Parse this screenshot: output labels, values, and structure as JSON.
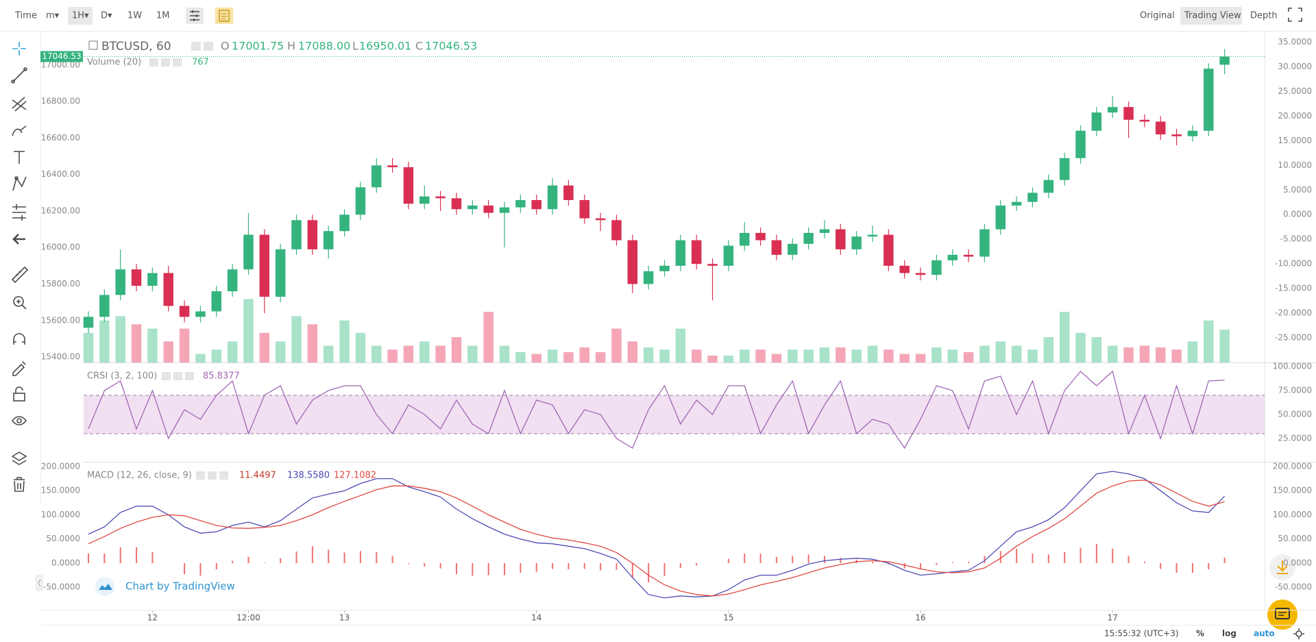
{
  "toolbar": {
    "intervals": [
      "Time",
      "m▾",
      "1H▾",
      "D▾",
      "1W",
      "1M"
    ],
    "views": [
      "Original",
      "Trading View",
      "Depth"
    ]
  },
  "status": {
    "clock": "15:55:32 (UTC+3)",
    "options": [
      "%",
      "log",
      "auto"
    ]
  },
  "watermark": "Chart by TradingView",
  "chart_data": [
    {
      "type": "candlestick",
      "title": "BTCUSD, 60",
      "legend": {
        "labels": [
          "O",
          "H",
          "L",
          "C"
        ],
        "values": [
          "17001.75",
          "17088.00",
          "16950.01",
          "17046.53"
        ]
      },
      "x": [
        0,
        2,
        4,
        6,
        8,
        10,
        12,
        14,
        16,
        18,
        20,
        22,
        24,
        26,
        28,
        30,
        32,
        34,
        36,
        38,
        40,
        42,
        44,
        46,
        48,
        50,
        52,
        54,
        56,
        58,
        60,
        62,
        64,
        66,
        68,
        70,
        72,
        74,
        76,
        78,
        80,
        82,
        84,
        86,
        88,
        90,
        92,
        94,
        96,
        98,
        100,
        102,
        104,
        106,
        108,
        110,
        112,
        114,
        116,
        118,
        120,
        122,
        124,
        126,
        128,
        130,
        132,
        134,
        136,
        138,
        140,
        142
      ],
      "xlim": [
        -0.6,
        147
      ],
      "xticks": [
        {
          "value": 8,
          "label": "12"
        },
        {
          "value": 20,
          "label": "12:00"
        },
        {
          "value": 32,
          "label": "13"
        },
        {
          "value": 56,
          "label": "14"
        },
        {
          "value": 80,
          "label": "15"
        },
        {
          "value": 104,
          "label": "16"
        },
        {
          "value": 128,
          "label": "17"
        }
      ],
      "ylim": [
        15370,
        17150
      ],
      "yticks": [
        {
          "value": 15400,
          "label": "15400.00"
        },
        {
          "value": 15600,
          "label": "15600.00"
        },
        {
          "value": 15800,
          "label": "15800.00"
        },
        {
          "value": 16000,
          "label": "16000.00"
        },
        {
          "value": 16200,
          "label": "16200.00"
        },
        {
          "value": 16400,
          "label": "16400.00"
        },
        {
          "value": 16600,
          "label": "16600.00"
        },
        {
          "value": 16800,
          "label": "16800.00"
        },
        {
          "value": 17000,
          "label": "17000.00"
        }
      ],
      "y2lim": [
        -30,
        35.9
      ],
      "y2ticks": [
        {
          "value": -25,
          "label": "-25.0000"
        },
        {
          "value": -20,
          "label": "-20.0000"
        },
        {
          "value": -15,
          "label": "-15.0000"
        },
        {
          "value": -10,
          "label": "-10.0000"
        },
        {
          "value": -5,
          "label": "-5.0000"
        },
        {
          "value": 0,
          "label": "0.0000"
        },
        {
          "value": 5,
          "label": "5.0000"
        },
        {
          "value": 10,
          "label": "10.0000"
        },
        {
          "value": 15,
          "label": "15.0000"
        },
        {
          "value": 20,
          "label": "20.0000"
        },
        {
          "value": 25,
          "label": "25.0000"
        },
        {
          "value": 30,
          "label": "30.0000"
        },
        {
          "value": 35,
          "label": "35.0000"
        }
      ],
      "open": [
        15560,
        15620,
        15740,
        15880,
        15790,
        15860,
        15680,
        15620,
        15650,
        15760,
        15880,
        16070,
        15730,
        15990,
        16150,
        15990,
        16090,
        16180,
        16330,
        16450,
        16440,
        16240,
        16280,
        16270,
        16210,
        16230,
        16190,
        16220,
        16260,
        16210,
        16340,
        16260,
        16160,
        16150,
        16040,
        15800,
        15870,
        15900,
        16040,
        15910,
        15900,
        16010,
        16080,
        16040,
        15960,
        16020,
        16080,
        16100,
        15990,
        16060,
        16070,
        15900,
        15860,
        15850,
        15930,
        15960,
        15950,
        16100,
        16230,
        16250,
        16300,
        16370,
        16490,
        16640,
        16740,
        16770,
        16700,
        16690,
        16620,
        16610,
        16640,
        17001.75
      ],
      "high": [
        15650,
        15770,
        15990,
        15910,
        15890,
        15900,
        15710,
        15680,
        15790,
        15910,
        16190,
        16100,
        16020,
        16180,
        16180,
        16120,
        16210,
        16360,
        16490,
        16490,
        16470,
        16340,
        16310,
        16300,
        16260,
        16260,
        16250,
        16290,
        16290,
        16380,
        16370,
        16290,
        16190,
        16180,
        16070,
        15900,
        15930,
        16070,
        16070,
        15940,
        16040,
        16140,
        16110,
        16070,
        16050,
        16110,
        16150,
        16130,
        16090,
        16120,
        16100,
        15930,
        15890,
        15960,
        15990,
        15990,
        16130,
        16260,
        16280,
        16330,
        16400,
        16520,
        16670,
        16770,
        16830,
        16800,
        16730,
        16720,
        16650,
        16670,
        17010,
        17088
      ],
      "low": [
        15530,
        15590,
        15710,
        15760,
        15760,
        15650,
        15590,
        15590,
        15620,
        15730,
        15850,
        15640,
        15700,
        15960,
        15960,
        15940,
        16060,
        16150,
        16300,
        16410,
        16210,
        16210,
        16200,
        16180,
        16180,
        16160,
        16000,
        16190,
        16180,
        16180,
        16230,
        16130,
        16090,
        16010,
        15750,
        15770,
        15840,
        15870,
        15880,
        15710,
        15870,
        15980,
        16010,
        15930,
        15930,
        15990,
        16050,
        15960,
        15960,
        16030,
        15870,
        15830,
        15820,
        15820,
        15900,
        15920,
        15920,
        16070,
        16200,
        16220,
        16270,
        16340,
        16460,
        16610,
        16710,
        16600,
        16660,
        16590,
        16560,
        16580,
        16610,
        16950.01
      ],
      "close": [
        15620,
        15740,
        15880,
        15790,
        15860,
        15680,
        15620,
        15650,
        15760,
        15880,
        16070,
        15730,
        15990,
        16150,
        15990,
        16090,
        16180,
        16330,
        16450,
        16440,
        16240,
        16280,
        16270,
        16210,
        16230,
        16190,
        16220,
        16260,
        16210,
        16340,
        16260,
        16160,
        16150,
        16040,
        15800,
        15870,
        15900,
        16040,
        15910,
        15900,
        16010,
        16080,
        16040,
        15960,
        16020,
        16080,
        16100,
        15990,
        16060,
        16070,
        15900,
        15860,
        15850,
        15930,
        15960,
        15950,
        16100,
        16230,
        16250,
        16300,
        16370,
        16490,
        16640,
        16740,
        16770,
        16700,
        16690,
        16620,
        16610,
        16640,
        16980,
        17046.53
      ],
      "up_color": "#34b37e",
      "down_color": "#d92f52",
      "volume": {
        "title": "Volume (20)",
        "ylim": [
          0,
          7580
        ],
        "up_color": "#a8e2c9",
        "down_color": "#f4a6b7",
        "values": [
          690,
          980,
          1080,
          890,
          790,
          490,
          790,
          200,
          300,
          490,
          1480,
          690,
          490,
          1080,
          890,
          390,
          980,
          690,
          390,
          300,
          390,
          490,
          390,
          590,
          390,
          1180,
          390,
          240,
          200,
          300,
          240,
          350,
          240,
          790,
          490,
          350,
          300,
          790,
          300,
          160,
          160,
          300,
          300,
          200,
          300,
          300,
          350,
          350,
          300,
          390,
          300,
          200,
          200,
          350,
          300,
          240,
          390,
          490,
          390,
          300,
          590,
          1180,
          690,
          590,
          390,
          350,
          390,
          350,
          300,
          490,
          980,
          767
        ]
      }
    },
    {
      "type": "line",
      "title": "CRSI (3, 2, 100)",
      "color": "#a066b4",
      "band": [
        30,
        70
      ],
      "band_color": "#f1e0f1",
      "ylim": [
        0.7,
        103.6
      ],
      "yticks": [
        {
          "value": 25,
          "label": "25.0000"
        },
        {
          "value": 50,
          "label": "50.0000"
        },
        {
          "value": 75,
          "label": "75.0000"
        },
        {
          "value": 100,
          "label": "100.0000"
        }
      ],
      "values": [
        35,
        75,
        85,
        35,
        75,
        25,
        55,
        45,
        70,
        85,
        30,
        70,
        80,
        40,
        65,
        75,
        80,
        80,
        50,
        30,
        60,
        50,
        35,
        65,
        40,
        30,
        75,
        30,
        65,
        60,
        30,
        55,
        50,
        25,
        15,
        55,
        80,
        40,
        65,
        50,
        80,
        80,
        30,
        60,
        85,
        30,
        60,
        85,
        30,
        45,
        40,
        15,
        45,
        80,
        75,
        35,
        85,
        90,
        50,
        85,
        30,
        75,
        95,
        80,
        95,
        30,
        70,
        25,
        80,
        30,
        85,
        85.8377
      ]
    },
    {
      "type": "macd",
      "title": "MACD (12, 26, close, 9)",
      "legend": [
        "11.4497",
        "138.5580",
        "127.1082"
      ],
      "ylim": [
        -96.7,
        208.5
      ],
      "yticks": [
        {
          "value": -50,
          "label": "-50.0000"
        },
        {
          "value": 0,
          "label": "0.0000"
        },
        {
          "value": 50,
          "label": "50.0000"
        },
        {
          "value": 100,
          "label": "100.0000"
        },
        {
          "value": 150,
          "label": "150.0000"
        },
        {
          "value": 200,
          "label": "200.0000"
        }
      ],
      "histogram": {
        "color": "#ef6f6f",
        "values": [
          20,
          20,
          33,
          33,
          23,
          0,
          -23,
          -26,
          -13,
          5,
          13,
          1,
          10,
          24,
          35,
          28,
          22,
          25,
          23,
          15,
          -2,
          -7,
          -11,
          -23,
          -26,
          -25,
          -25,
          -20,
          -18,
          -12,
          -13,
          -12,
          -15,
          -14,
          -30,
          -40,
          -27,
          -10,
          -5,
          0,
          9,
          20,
          20,
          13,
          15,
          18,
          15,
          11,
          7,
          3,
          -3,
          -11,
          -13,
          -4,
          2,
          3,
          15,
          25,
          30,
          20,
          18,
          23,
          32,
          40,
          30,
          15,
          3,
          -12,
          -20,
          -20,
          -13,
          11.4497
        ]
      },
      "macd": {
        "color": "#4b4bb4",
        "values": [
          60,
          75,
          105,
          118,
          118,
          100,
          75,
          62,
          65,
          78,
          85,
          75,
          88,
          112,
          135,
          143,
          150,
          165,
          175,
          175,
          158,
          148,
          137,
          112,
          92,
          75,
          60,
          50,
          42,
          40,
          35,
          30,
          20,
          8,
          -30,
          -65,
          -72,
          -68,
          -70,
          -68,
          -55,
          -35,
          -25,
          -25,
          -15,
          -2,
          5,
          8,
          10,
          8,
          0,
          -15,
          -25,
          -22,
          -18,
          -15,
          5,
          35,
          65,
          75,
          90,
          115,
          150,
          185,
          190,
          185,
          175,
          150,
          125,
          108,
          105,
          138.558
        ]
      },
      "signal": {
        "color": "#e0463f",
        "values": [
          40,
          55,
          72,
          85,
          95,
          100,
          98,
          88,
          78,
          73,
          72,
          74,
          78,
          88,
          100,
          115,
          128,
          140,
          152,
          160,
          160,
          155,
          148,
          135,
          118,
          100,
          85,
          70,
          60,
          52,
          48,
          42,
          35,
          22,
          0,
          -25,
          -45,
          -58,
          -65,
          -68,
          -64,
          -55,
          -45,
          -38,
          -30,
          -20,
          -10,
          -3,
          3,
          5,
          3,
          -4,
          -12,
          -18,
          -20,
          -18,
          -10,
          10,
          35,
          55,
          72,
          92,
          118,
          145,
          160,
          170,
          172,
          162,
          145,
          128,
          118,
          127.1082
        ]
      }
    }
  ]
}
